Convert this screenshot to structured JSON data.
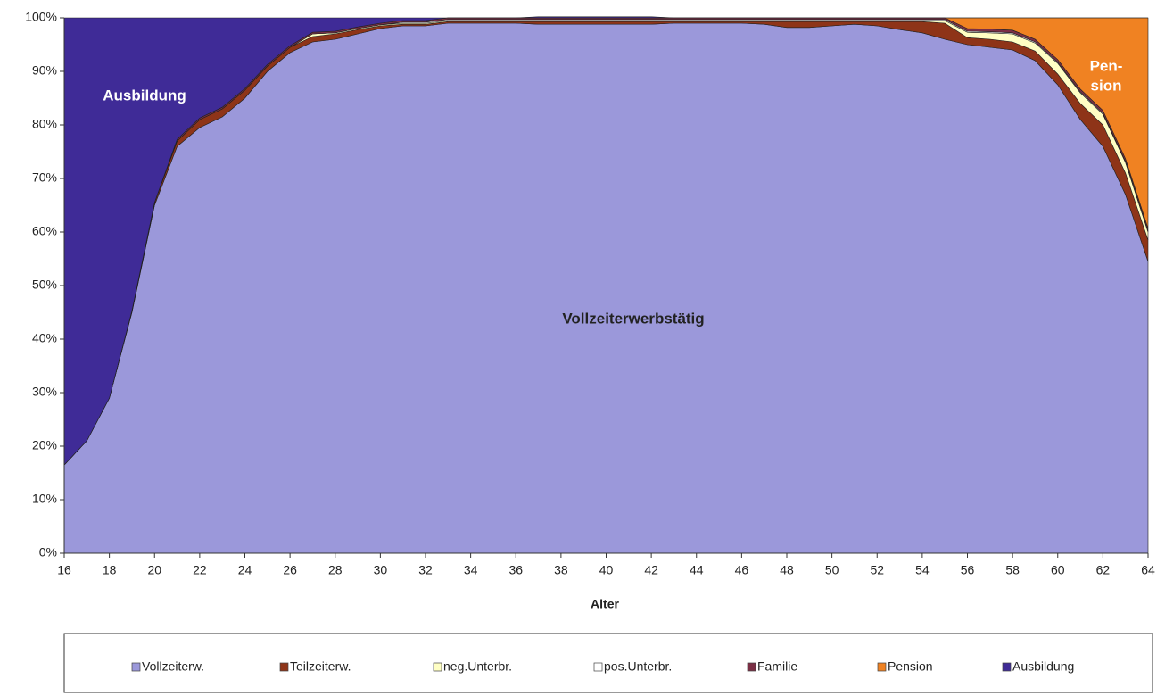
{
  "chart_data": {
    "type": "stacked_area",
    "x_label": "Alter",
    "x": [
      16,
      17,
      18,
      19,
      20,
      21,
      22,
      23,
      24,
      25,
      26,
      27,
      28,
      29,
      30,
      31,
      32,
      33,
      34,
      35,
      36,
      37,
      38,
      39,
      40,
      41,
      42,
      43,
      44,
      45,
      46,
      47,
      48,
      49,
      50,
      51,
      52,
      53,
      54,
      55,
      56,
      57,
      58,
      59,
      60,
      61,
      62,
      63,
      64
    ],
    "xlim": [
      16,
      64
    ],
    "xticks": [
      16,
      18,
      20,
      22,
      24,
      26,
      28,
      30,
      32,
      34,
      36,
      38,
      40,
      42,
      44,
      46,
      48,
      50,
      52,
      54,
      56,
      58,
      60,
      62,
      64
    ],
    "ylim": [
      0,
      100
    ],
    "yticks": [
      {
        "value": 0,
        "label": "0%"
      },
      {
        "value": 10,
        "label": "10%"
      },
      {
        "value": 20,
        "label": "20%"
      },
      {
        "value": 30,
        "label": "30%"
      },
      {
        "value": 40,
        "label": "40%"
      },
      {
        "value": 50,
        "label": "50%"
      },
      {
        "value": 60,
        "label": "60%"
      },
      {
        "value": 70,
        "label": "70%"
      },
      {
        "value": 80,
        "label": "80%"
      },
      {
        "value": 90,
        "label": "90%"
      },
      {
        "value": 100,
        "label": "100%"
      }
    ],
    "series": [
      {
        "name": "Vollzeiterw.",
        "color": "#9b98da",
        "values": [
          16.5,
          21,
          29,
          45,
          65,
          76,
          79.5,
          81.5,
          85,
          90,
          93.5,
          95.5,
          96,
          97,
          98,
          98.5,
          98.5,
          99,
          99,
          99,
          99,
          98.8,
          98.8,
          98.8,
          98.8,
          98.8,
          98.8,
          99,
          99,
          99,
          99,
          98.8,
          98.2,
          98.2,
          98.5,
          98.8,
          98.5,
          97.8,
          97.2,
          96,
          95,
          94.5,
          94,
          92,
          87.5,
          81,
          76,
          67,
          54.5
        ]
      },
      {
        "name": "Teilzeiterw.",
        "color": "#8e3418",
        "values": [
          0,
          0,
          0,
          0.3,
          0.5,
          1,
          1.5,
          1.5,
          1.5,
          1,
          1,
          1,
          1,
          0.8,
          0.5,
          0.3,
          0.3,
          0.3,
          0.3,
          0.3,
          0.3,
          0.5,
          0.5,
          0.5,
          0.5,
          0.5,
          0.5,
          0.3,
          0.3,
          0.3,
          0.3,
          0.5,
          1.1,
          1.1,
          0.8,
          0.5,
          0.8,
          1.5,
          2.1,
          3,
          1.3,
          1.5,
          1.5,
          1.8,
          2,
          3,
          4,
          4,
          4
        ]
      },
      {
        "name": "neg.Unterbr.",
        "color": "#ffffc4",
        "values": [
          0,
          0,
          0,
          0,
          0,
          0,
          0,
          0,
          0,
          0,
          0,
          0.5,
          0.2,
          0.2,
          0.2,
          0.2,
          0.2,
          0.2,
          0.2,
          0.2,
          0.2,
          0.2,
          0.2,
          0.2,
          0.2,
          0.2,
          0.2,
          0.2,
          0.2,
          0.2,
          0.2,
          0.2,
          0.2,
          0.2,
          0.2,
          0.2,
          0.2,
          0.2,
          0.2,
          0.5,
          1,
          1.2,
          1.5,
          1.5,
          2,
          2,
          2,
          2,
          1.5
        ]
      },
      {
        "name": "pos.Unterbr.",
        "color": "#ffffff",
        "values": [
          0,
          0,
          0,
          0,
          0,
          0,
          0,
          0,
          0,
          0,
          0,
          0,
          0,
          0,
          0,
          0.2,
          0.2,
          0.2,
          0.2,
          0.2,
          0.2,
          0.2,
          0.2,
          0.2,
          0.2,
          0.2,
          0.2,
          0.2,
          0.2,
          0.2,
          0.2,
          0.2,
          0.2,
          0.2,
          0.2,
          0.2,
          0.2,
          0.2,
          0.2,
          0.2,
          0.2,
          0.2,
          0.2,
          0.2,
          0.2,
          0.2,
          0.2,
          0.2,
          0.2
        ]
      },
      {
        "name": "Familie",
        "color": "#7b2f45",
        "values": [
          0,
          0,
          0,
          0,
          0,
          0.3,
          0.3,
          0.3,
          0.3,
          0.3,
          0.3,
          0.3,
          0.3,
          0.3,
          0.3,
          0.3,
          0.3,
          0.3,
          0.3,
          0.3,
          0.3,
          0.3,
          0.3,
          0.3,
          0.3,
          0.3,
          0.3,
          0.3,
          0.3,
          0.3,
          0.3,
          0.3,
          0.3,
          0.3,
          0.3,
          0.3,
          0.3,
          0.3,
          0.3,
          0.3,
          0.5,
          0.5,
          0.5,
          0.5,
          0.5,
          0.5,
          0.5,
          0.5,
          0.5
        ]
      },
      {
        "name": "Pension",
        "color": "#f08222",
        "values": [
          0,
          0,
          0,
          0,
          0,
          0,
          0,
          0,
          0,
          0,
          0,
          0,
          0,
          0,
          0,
          0,
          0,
          0,
          0,
          0,
          0,
          0,
          0,
          0,
          0,
          0,
          0,
          0,
          0,
          0,
          0,
          0,
          0,
          0,
          0,
          0,
          0,
          0,
          0,
          0,
          2,
          2.1,
          2.3,
          4,
          7.8,
          13.3,
          17.3,
          26.3,
          39.3
        ]
      },
      {
        "name": "Ausbildung",
        "color": "#3f2b97",
        "values": [
          83.5,
          79,
          71,
          54.7,
          34.5,
          22.7,
          18.7,
          16.7,
          13.2,
          8.7,
          5.2,
          2.7,
          2.5,
          1.7,
          1,
          0.5,
          0.5,
          0,
          0,
          0,
          0,
          0.2,
          0.2,
          0.2,
          0.2,
          0.2,
          0.2,
          0,
          0,
          0,
          0,
          0,
          0,
          0,
          0,
          0,
          0,
          0,
          0,
          0,
          0,
          0,
          0,
          0,
          0,
          0,
          0,
          0,
          0
        ]
      }
    ],
    "annotations": [
      "Ausbildung",
      "Vollzeiterwerbstätig",
      "Pen-",
      "sion"
    ]
  }
}
